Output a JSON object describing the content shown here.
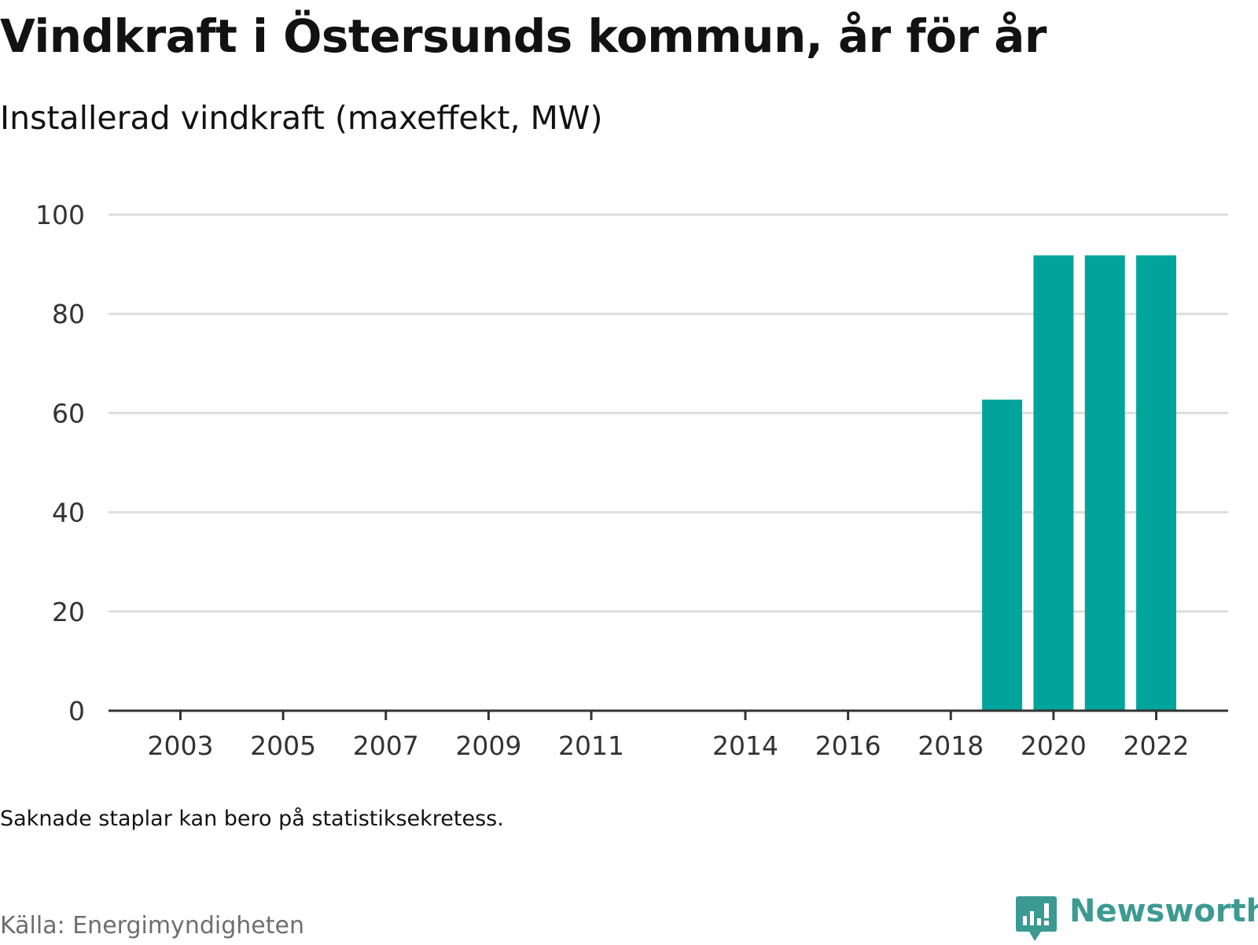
{
  "header": {
    "title": "Vindkraft i Östersunds kommun, år för år",
    "subtitle": "Installerad vindkraft (maxeffekt, MW)"
  },
  "footer": {
    "note": "Saknade staplar kan bero på statistiksekretess.",
    "source": "Källa: Energimyndigheten",
    "brand": "Newsworthy"
  },
  "colors": {
    "bar": "#00a49a",
    "grid": "#dddddd",
    "axis": "#333333",
    "tick_text": "#333333",
    "brand": "#3c9a92"
  },
  "chart_data": {
    "type": "bar",
    "title": "Vindkraft i Östersunds kommun, år för år",
    "subtitle": "Installerad vindkraft (maxeffekt, MW)",
    "xlabel": "",
    "ylabel": "",
    "ylim": [
      0,
      100
    ],
    "yticks": [
      0,
      20,
      40,
      60,
      80,
      100
    ],
    "xticks": [
      2003,
      2005,
      2007,
      2009,
      2011,
      2014,
      2016,
      2018,
      2020,
      2022
    ],
    "x_range": [
      2001.6,
      2023.4
    ],
    "grid": true,
    "legend": "none",
    "categories": [
      2019,
      2020,
      2021,
      2022
    ],
    "values": [
      62.7,
      91.8,
      91.8,
      91.8
    ]
  }
}
